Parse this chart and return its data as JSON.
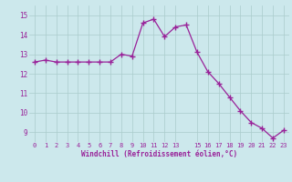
{
  "x": [
    0,
    1,
    2,
    3,
    4,
    5,
    6,
    7,
    8,
    9,
    10,
    11,
    12,
    13,
    14,
    15,
    16,
    17,
    18,
    19,
    20,
    21,
    22,
    23
  ],
  "y": [
    12.6,
    12.7,
    12.6,
    12.6,
    12.6,
    12.6,
    12.6,
    12.6,
    13.0,
    12.9,
    14.6,
    14.8,
    13.9,
    14.4,
    14.5,
    13.1,
    12.1,
    11.5,
    10.8,
    10.1,
    9.5,
    9.2,
    8.7,
    9.1
  ],
  "line_color": "#992299",
  "marker": "+",
  "marker_size": 4,
  "bg_color": "#cce8ec",
  "grid_color": "#aacccc",
  "xlabel": "Windchill (Refroidissement éolien,°C)",
  "xlabel_color": "#992299",
  "tick_color": "#992299",
  "ylim": [
    8.5,
    15.5
  ],
  "xlim": [
    -0.5,
    23.5
  ],
  "yticks": [
    9,
    10,
    11,
    12,
    13,
    14,
    15
  ],
  "xticks": [
    0,
    1,
    2,
    3,
    4,
    5,
    6,
    7,
    8,
    9,
    10,
    11,
    12,
    13,
    15,
    16,
    17,
    18,
    19,
    20,
    21,
    22,
    23
  ],
  "xtick_labels": [
    "0",
    "1",
    "2",
    "3",
    "4",
    "5",
    "6",
    "7",
    "8",
    "9",
    "10",
    "11",
    "12",
    "13",
    "15",
    "16",
    "17",
    "18",
    "19",
    "20",
    "21",
    "22",
    "23"
  ]
}
